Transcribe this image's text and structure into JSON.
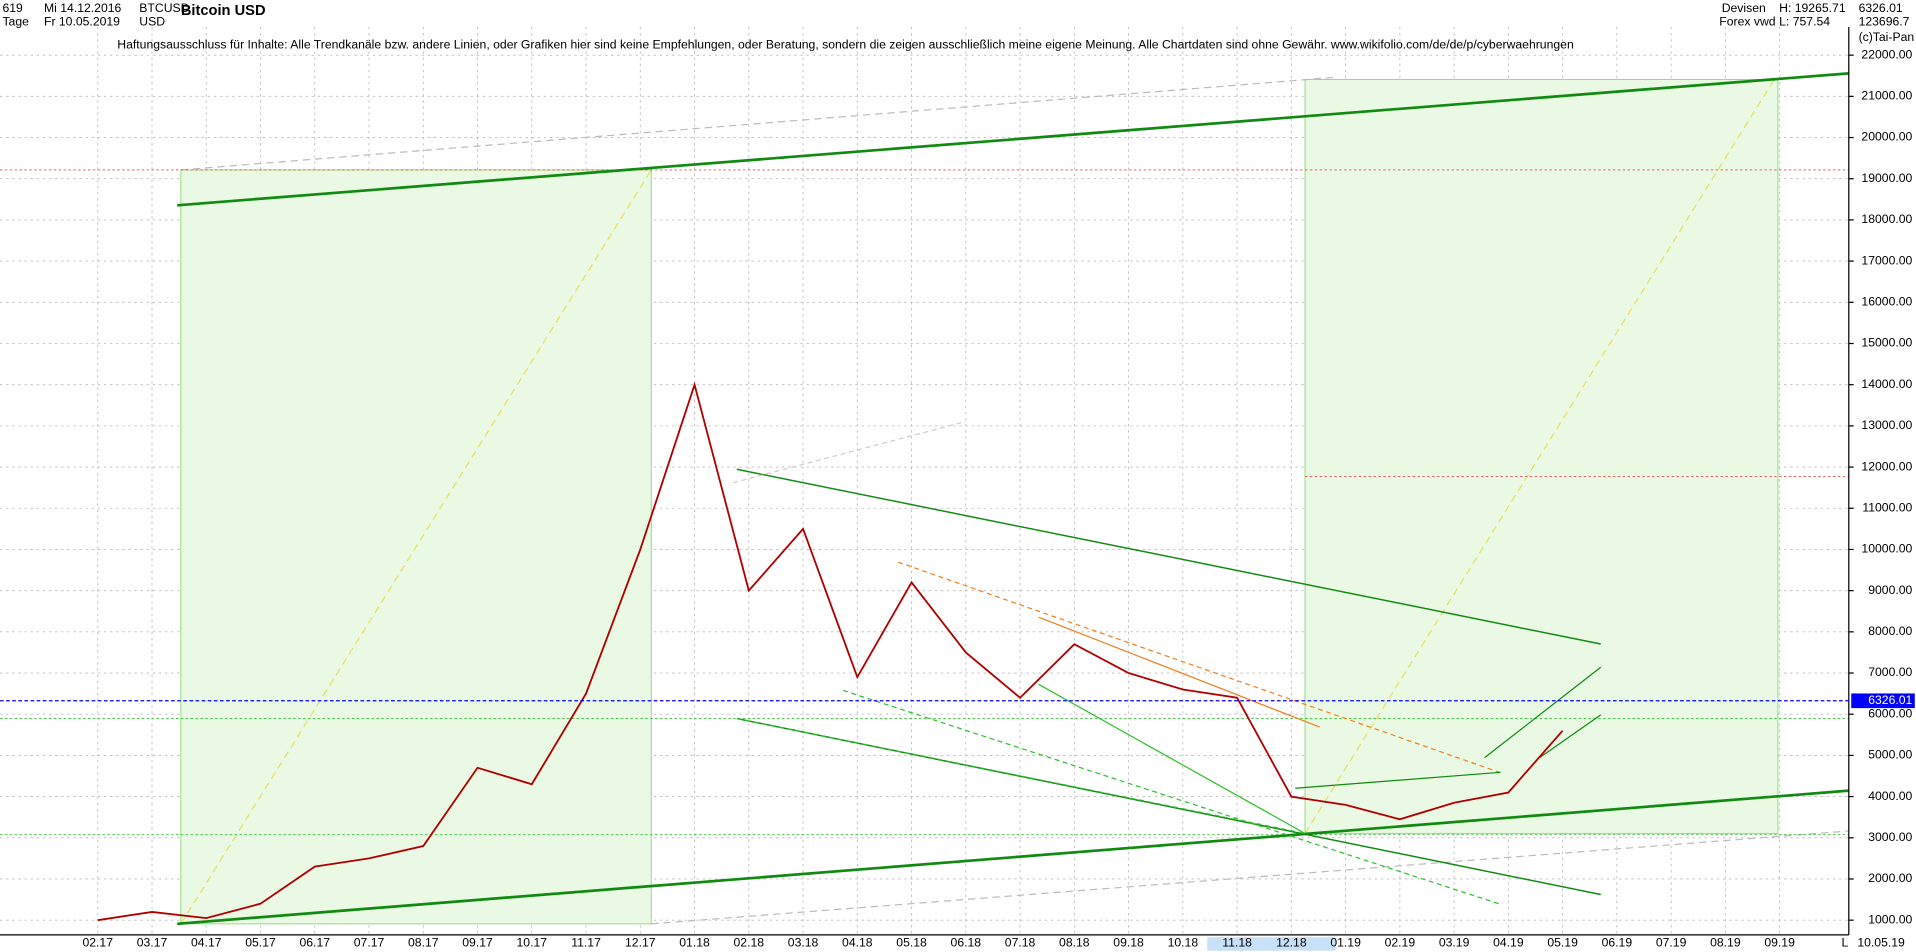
{
  "header": {
    "count": "619",
    "start": "Mi 14.12.2016",
    "period": "Tage",
    "end": "Fr 10.05.2019",
    "symbol": "BTCUSD",
    "currency": "USD",
    "market": "Devisen",
    "source": "Forex vwd",
    "high": "H: 19265.71",
    "low": "L: 757.54",
    "volume": "123696.7",
    "copyright": "(c)Tai-Pan",
    "date_label": "10.05.19",
    "scale_marker": "L"
  },
  "chart_data": {
    "type": "line",
    "title": "Bitcoin USD",
    "subtitle": "Haftungsausschluss für Inhalte: Alle Trendkanäle bzw. andere Linien, oder Grafiken hier sind keine Empfehlungen, oder Beratung, sondern die zeigen ausschließlich meine eigene Meinung. Alle Chartdaten sind ohne Gewähr.  www.wikifolio.com/de/de/p/cyberwaehrungen",
    "categories": [
      "02.17",
      "03.17",
      "04.17",
      "05.17",
      "06.17",
      "07.17",
      "08.17",
      "09.17",
      "10.17",
      "11.17",
      "12.17",
      "01.18",
      "02.18",
      "03.18",
      "04.18",
      "05.18",
      "06.18",
      "07.18",
      "08.18",
      "09.18",
      "10.18",
      "11.18",
      "12.18",
      "01.19",
      "02.19",
      "03.19",
      "04.19",
      "05.19",
      "06.19",
      "07.19",
      "08.19",
      "09.19"
    ],
    "values": [
      1000,
      1200,
      1050,
      1400,
      2300,
      2500,
      2800,
      4700,
      4300,
      6500,
      10000,
      14000,
      9000,
      10500,
      6900,
      9200,
      7500,
      6400,
      7700,
      7000,
      6600,
      6400,
      4000,
      3800,
      3450,
      3850,
      4100,
      5600,
      null,
      null,
      null,
      null
    ],
    "color": "#b00000",
    "last_price": 6326.01,
    "last_price_color": "#0000ff",
    "ylim": [
      644,
      22685
    ],
    "yticks": [
      {
        "value": 1000,
        "label": "1000.00"
      },
      {
        "value": 2000,
        "label": "2000.00"
      },
      {
        "value": 3000,
        "label": "3000.00"
      },
      {
        "value": 4000,
        "label": "4000.00"
      },
      {
        "value": 5000,
        "label": "5000.00"
      },
      {
        "value": 6000,
        "label": "6000.00"
      },
      {
        "value": 7000,
        "label": "7000.00"
      },
      {
        "value": 8000,
        "label": "8000.00"
      },
      {
        "value": 9000,
        "label": "9000.00"
      },
      {
        "value": 10000,
        "label": "10000.00"
      },
      {
        "value": 11000,
        "label": "11000.00"
      },
      {
        "value": 12000,
        "label": "12000.00"
      },
      {
        "value": 13000,
        "label": "13000.00"
      },
      {
        "value": 14000,
        "label": "14000.00"
      },
      {
        "value": 15000,
        "label": "15000.00"
      },
      {
        "value": 16000,
        "label": "16000.00"
      },
      {
        "value": 17000,
        "label": "17000.00"
      },
      {
        "value": 18000,
        "label": "18000.00"
      },
      {
        "value": 19000,
        "label": "19000.00"
      },
      {
        "value": 20000,
        "label": "20000.00"
      },
      {
        "value": 21000,
        "label": "21000.00"
      },
      {
        "value": 22000,
        "label": "22000.00"
      }
    ],
    "grid": true
  }
}
